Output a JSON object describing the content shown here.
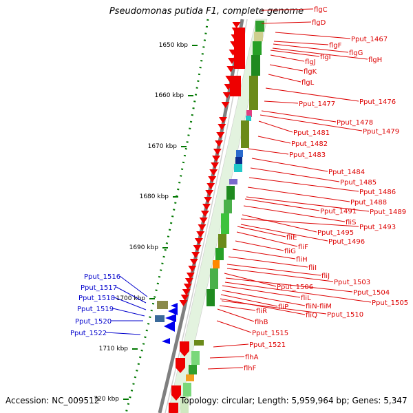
{
  "title": "Pseudomonas putida F1, complete genome",
  "accession": "Accession: NC_009512",
  "topology": "Topology: circular; Length: 5,959,964 bp; Genes: 5,347",
  "colors": {
    "forward_gene": "#ee0000",
    "reverse_gene": "#0000ee",
    "red_label": "#dd0000",
    "blue_label": "#0000cc",
    "ruler": "#007700",
    "backbone": "#888888"
  },
  "ticks": [
    {
      "label": "1650 kbp"
    },
    {
      "label": "1660 kbp"
    },
    {
      "label": "1670 kbp"
    },
    {
      "label": "1680 kbp"
    },
    {
      "label": "1690 kbp"
    },
    {
      "label": "1700 kbp"
    },
    {
      "label": "1710 kbp"
    },
    {
      "label": "720 kbp"
    }
  ],
  "red_labels": [
    "flgC",
    "flgD",
    "Pput_1467",
    "flgF",
    "flgG",
    "flgH",
    "flgI",
    "flgJ",
    "flgK",
    "flgL",
    "Pput_1476",
    "Pput_1477",
    "Pput_1478",
    "Pput_1479",
    "Pput_1481",
    "Pput_1482",
    "Pput_1483",
    "Pput_1484",
    "Pput_1485",
    "Pput_1486",
    "Pput_1488",
    "Pput_1489",
    "Pput_1491",
    "fliS",
    "Pput_1493",
    "Pput_1495",
    "fliE",
    "Pput_1496",
    "fliF",
    "fliG",
    "fliH",
    "fliI",
    "fliJ",
    "Pput_1503",
    "Pput_1506",
    "Pput_1504",
    "Pput_1505",
    "fliL",
    "fliN-fliM",
    "fliP",
    "fliQ",
    "Pput_1510",
    "fliR",
    "flhB",
    "Pput_1515",
    "Pput_1521",
    "flhA",
    "flhF"
  ],
  "blue_labels": [
    "Pput_1516",
    "Pput_1517",
    "Pput_1518",
    "Pput_1519",
    "Pput_1520",
    "Pput_1522"
  ]
}
